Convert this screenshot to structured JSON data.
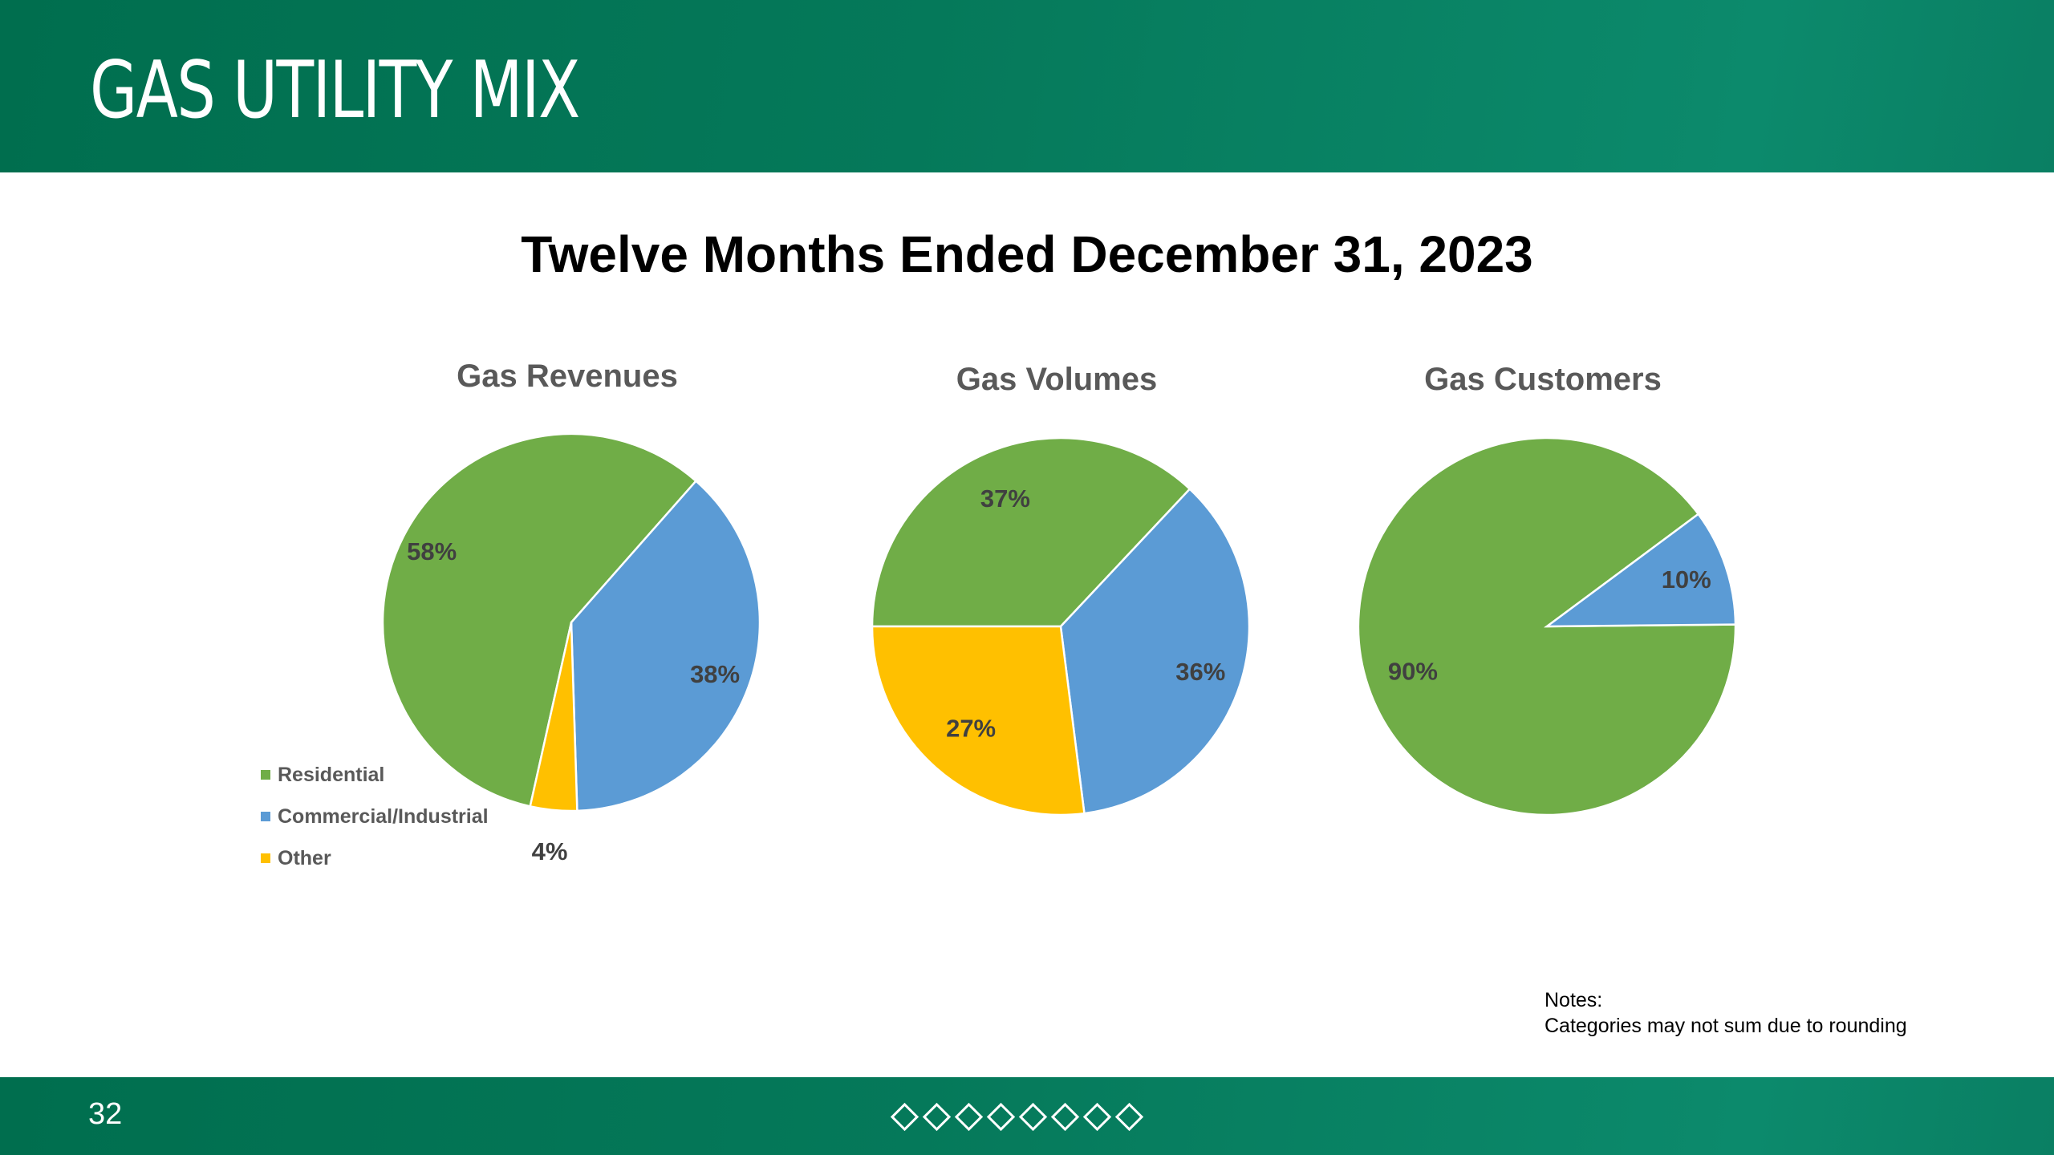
{
  "header": {
    "title": "GAS UTILITY MIX"
  },
  "subtitle": "Twelve Months Ended December 31, 2023",
  "colors": {
    "residential": "#70ad47",
    "commercial": "#5b9bd5",
    "other": "#ffc000",
    "band": "#006e4e",
    "label_text": "#404040",
    "title_text": "#595959"
  },
  "legend": [
    {
      "label": "Residential",
      "color": "#70ad47"
    },
    {
      "label": "Commercial/Industrial",
      "color": "#5b9bd5"
    },
    {
      "label": "Other",
      "color": "#ffc000"
    }
  ],
  "chart_data": [
    {
      "type": "pie",
      "title": "Gas Revenues",
      "categories": [
        "Residential",
        "Commercial/Industrial",
        "Other"
      ],
      "values": [
        58,
        38,
        4
      ],
      "labels": [
        "58%",
        "38%",
        "4%"
      ]
    },
    {
      "type": "pie",
      "title": "Gas Volumes",
      "categories": [
        "Residential",
        "Commercial/Industrial",
        "Other"
      ],
      "values": [
        37,
        36,
        27
      ],
      "labels": [
        "37%",
        "36%",
        "27%"
      ]
    },
    {
      "type": "pie",
      "title": "Gas Customers",
      "categories": [
        "Residential",
        "Commercial/Industrial"
      ],
      "values": [
        90,
        10
      ],
      "labels": [
        "90%",
        "10%"
      ]
    }
  ],
  "notes": {
    "heading": "Notes:",
    "text": "Categories may not sum due to rounding"
  },
  "footer": {
    "page_number": "32",
    "decoration_count": 8
  }
}
